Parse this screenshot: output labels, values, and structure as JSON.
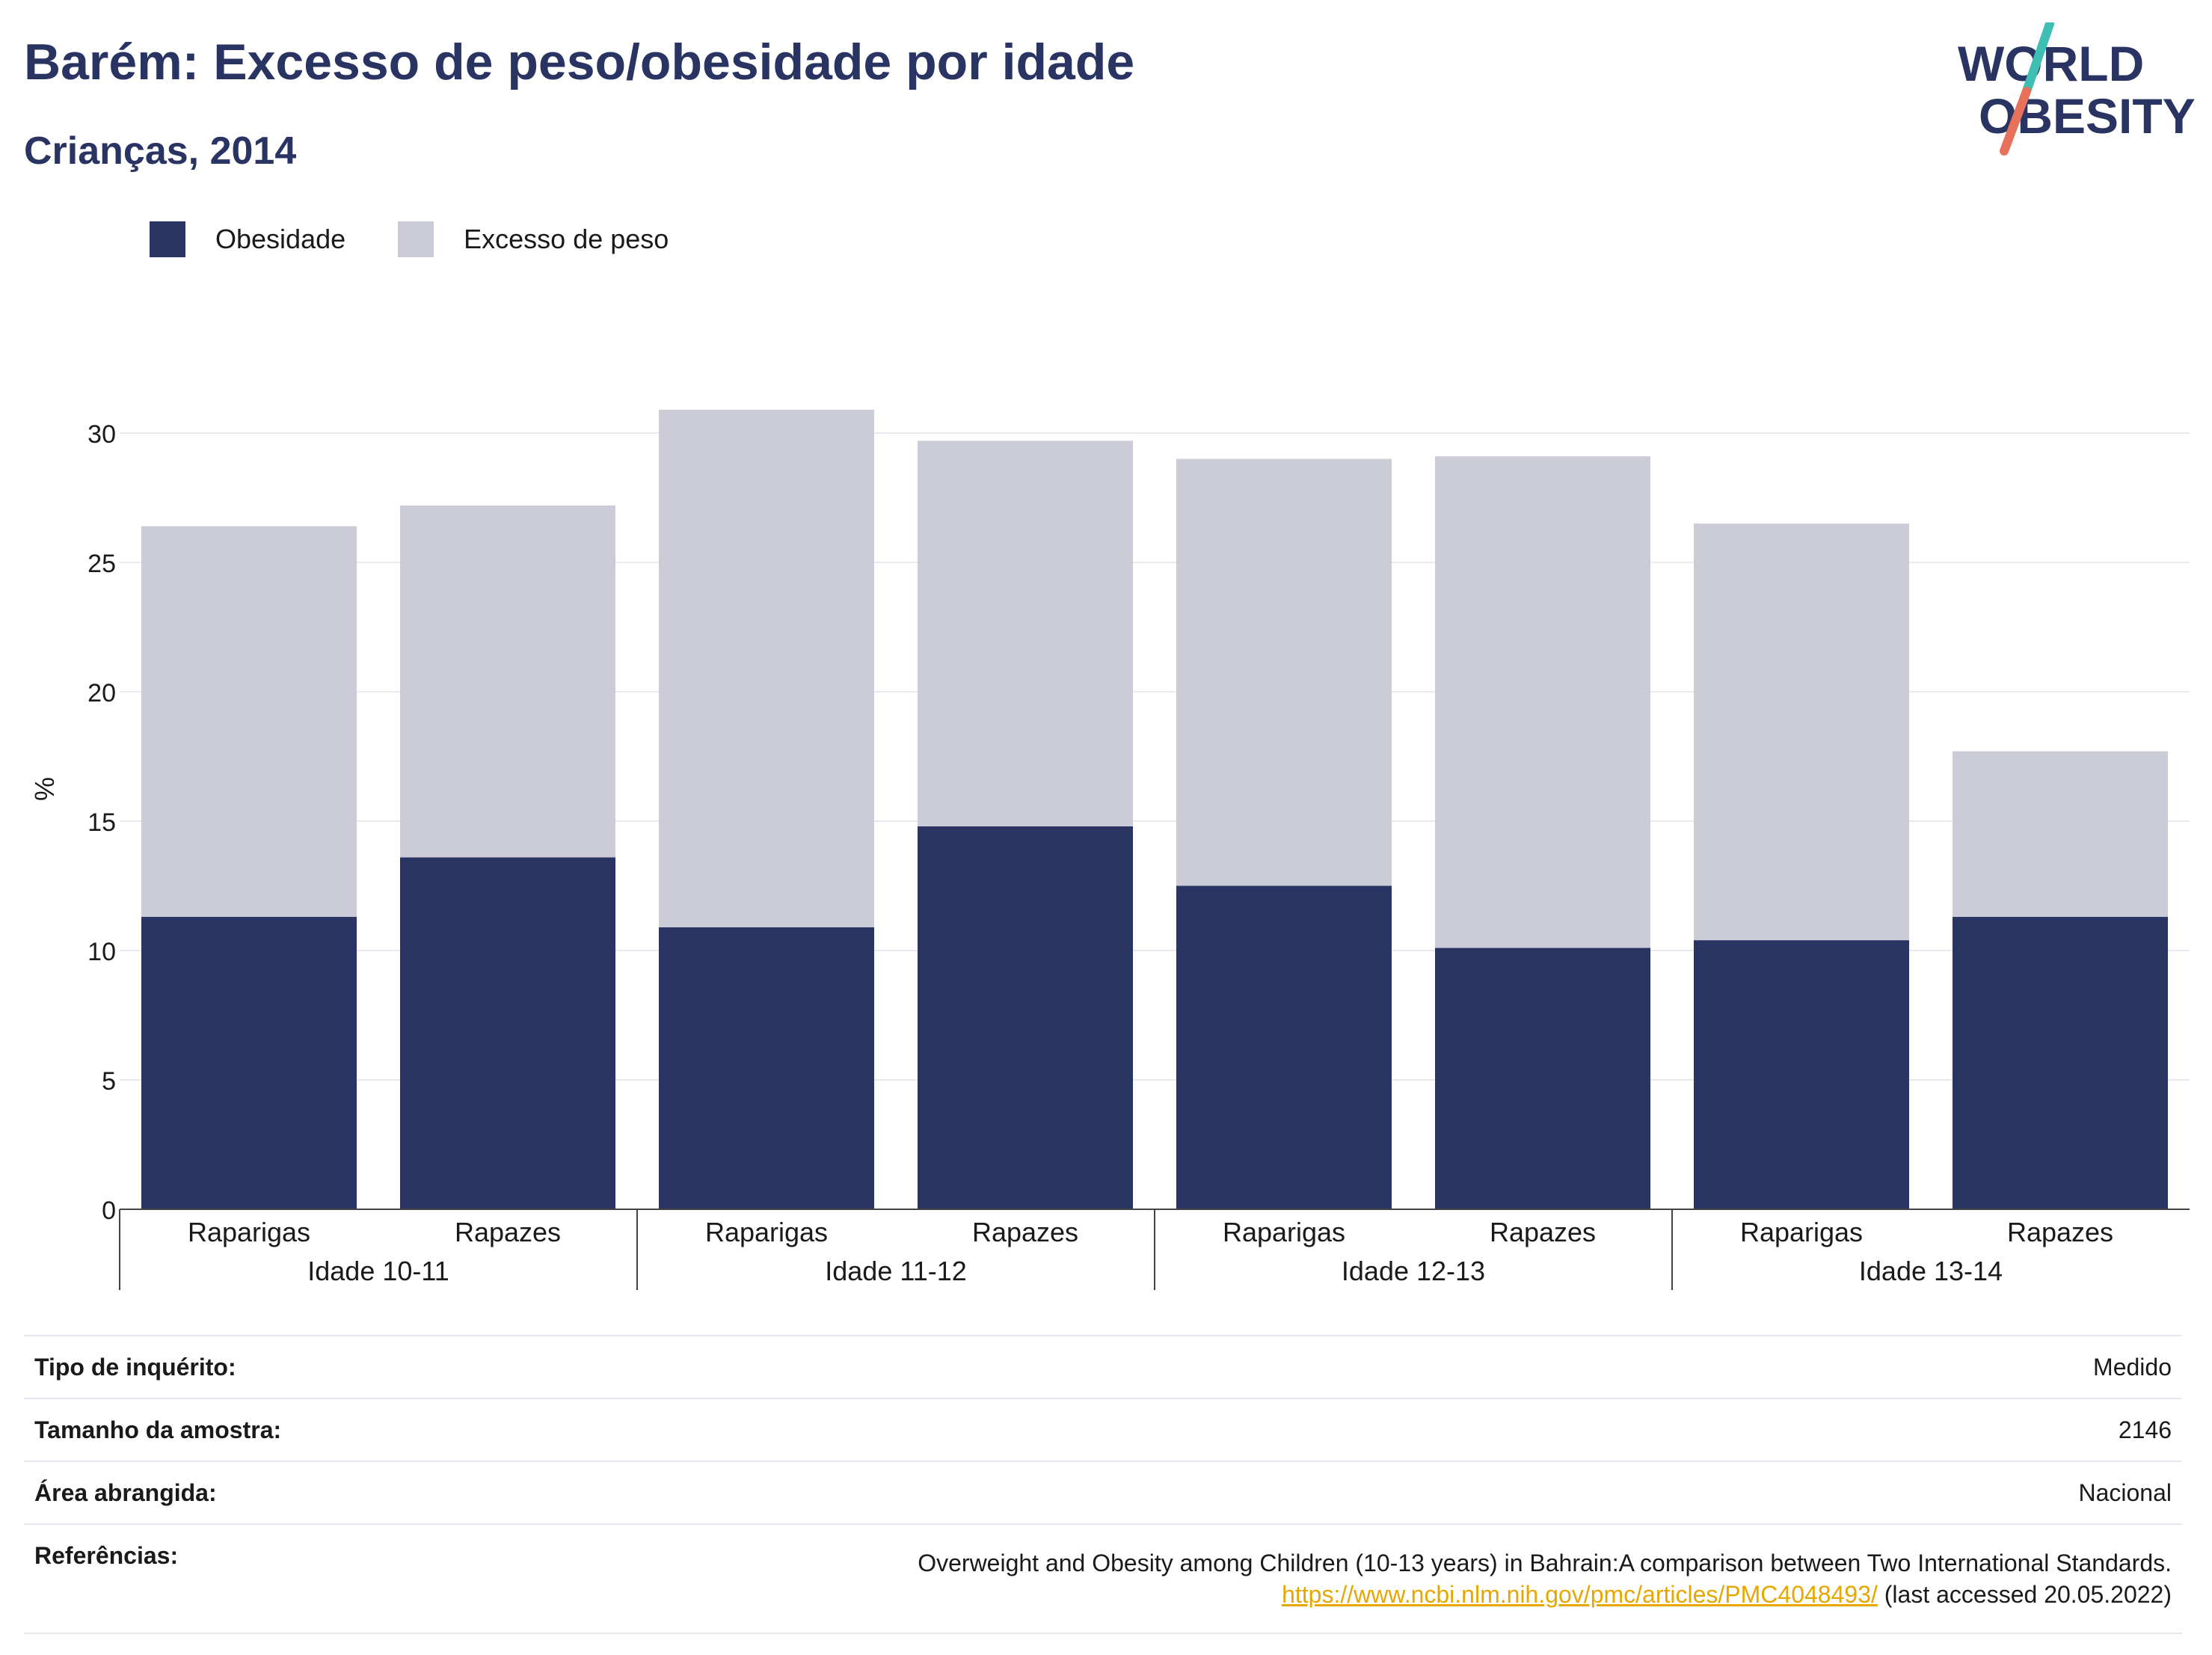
{
  "header": {
    "title": "Barém: Excesso de peso/obesidade por idade",
    "subtitle": "Crianças, 2014"
  },
  "logo": {
    "line1": "WORLD",
    "line2": "OBESITY",
    "colors": {
      "text": "#293462",
      "slash_top": "#3fbfb4",
      "slash_bottom": "#e8715c"
    }
  },
  "legend": [
    {
      "label": "Obesidade",
      "color": "#293462"
    },
    {
      "label": "Excesso de peso",
      "color": "#cbccd8"
    }
  ],
  "chart_data": {
    "type": "bar",
    "stacked": true,
    "categories": [
      "Raparigas",
      "Rapazes",
      "Raparigas",
      "Rapazes",
      "Raparigas",
      "Rapazes",
      "Raparigas",
      "Rapazes"
    ],
    "groups": [
      {
        "label": "Idade 10-11",
        "span": 2
      },
      {
        "label": "Idade 11-12",
        "span": 2
      },
      {
        "label": "Idade 12-13",
        "span": 2
      },
      {
        "label": "Idade 13-14",
        "span": 2
      }
    ],
    "series": [
      {
        "name": "Obesidade",
        "color": "#293462",
        "values": [
          11.3,
          13.6,
          10.9,
          14.8,
          12.5,
          10.1,
          10.4,
          11.3
        ]
      },
      {
        "name": "Excesso de peso",
        "color": "#cbccd8",
        "values": [
          15.1,
          13.6,
          20.0,
          14.9,
          16.5,
          19.0,
          16.1,
          6.4
        ]
      }
    ],
    "ylabel": "%",
    "ylim": [
      0,
      32
    ],
    "yticks": [
      0,
      5,
      10,
      15,
      20,
      25,
      30
    ],
    "grid": true
  },
  "info": {
    "rows": [
      {
        "key": "Tipo de inquérito:",
        "value": "Medido"
      },
      {
        "key": "Tamanho da amostra:",
        "value": "2146"
      },
      {
        "key": "Área abrangida:",
        "value": "Nacional"
      }
    ],
    "reference": {
      "key": "Referências:",
      "text": "Overweight and Obesity among Children (10-13 years) in Bahrain:A comparison between Two International Standards.",
      "link": "https://www.ncbi.nlm.nih.gov/pmc/articles/PMC4048493/",
      "suffix": " (last accessed 20.05.2022)"
    }
  }
}
